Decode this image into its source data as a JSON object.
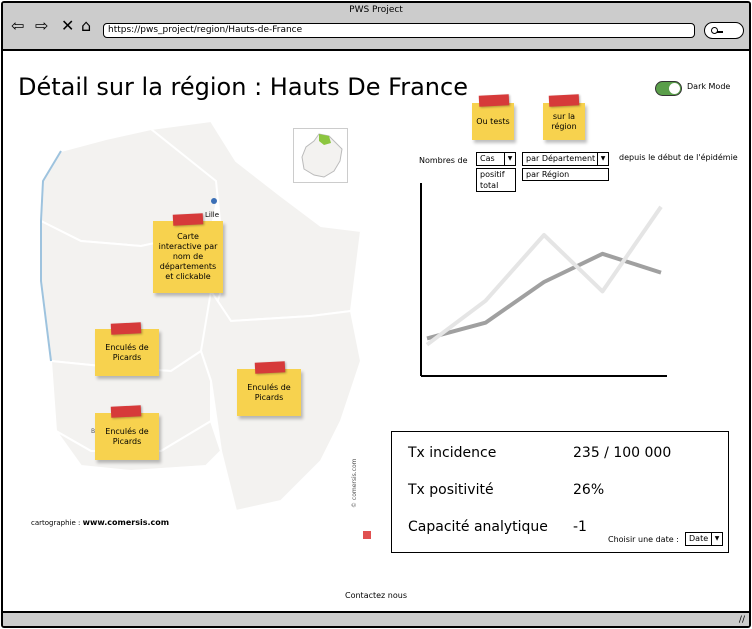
{
  "window": {
    "title": "PWS Project"
  },
  "nav": {
    "url": "https://pws_project/region/Hauts-de-France"
  },
  "page": {
    "title": "Détail sur la région : Hauts De France"
  },
  "dark_mode": {
    "label": "Dark Mode",
    "enabled": true
  },
  "notes": {
    "ou_tests": "Ou tests",
    "sur_region": "sur la région",
    "map_note": "Carte interactive par nom de départements et clickable",
    "picards": "Enculés de Picards"
  },
  "map": {
    "city": "Lille",
    "credit_label": "cartographie :",
    "credit_site": "www.comersis.com",
    "vertical_credit": "© comersis.com",
    "colors": {
      "region": "#f3f2f0",
      "border": "#ffffff",
      "coast": "#9ec3de",
      "highlight": "#8cc63f"
    }
  },
  "controls": {
    "prefix": "Nombres de",
    "metric_selected": "Cas",
    "metric_options": [
      "positif",
      "total"
    ],
    "scope_selected": "par Département",
    "scope_options": [
      "par Région"
    ],
    "suffix": "depuis le début de l'épidémie"
  },
  "chart_data": {
    "type": "line",
    "x": [
      0,
      1,
      2,
      3,
      4
    ],
    "series": [
      {
        "values": [
          1.0,
          2.4,
          4.5,
          2.7,
          5.4
        ],
        "color": "#e5e5e5"
      },
      {
        "values": [
          1.2,
          1.7,
          3.0,
          3.9,
          3.3
        ],
        "color": "#a0a0a0"
      }
    ],
    "ylim": [
      0,
      6
    ],
    "grid": false
  },
  "stats": {
    "incidence_label": "Tx incidence",
    "incidence_value": "235 / 100 000",
    "positivity_label": "Tx positivité",
    "positivity_value": "26%",
    "capacity_label": "Capacité analytique",
    "capacity_value": "-1",
    "date_label": "Choisir une date :",
    "date_selected": "Date"
  },
  "footer": {
    "contact": "Contactez nous"
  }
}
